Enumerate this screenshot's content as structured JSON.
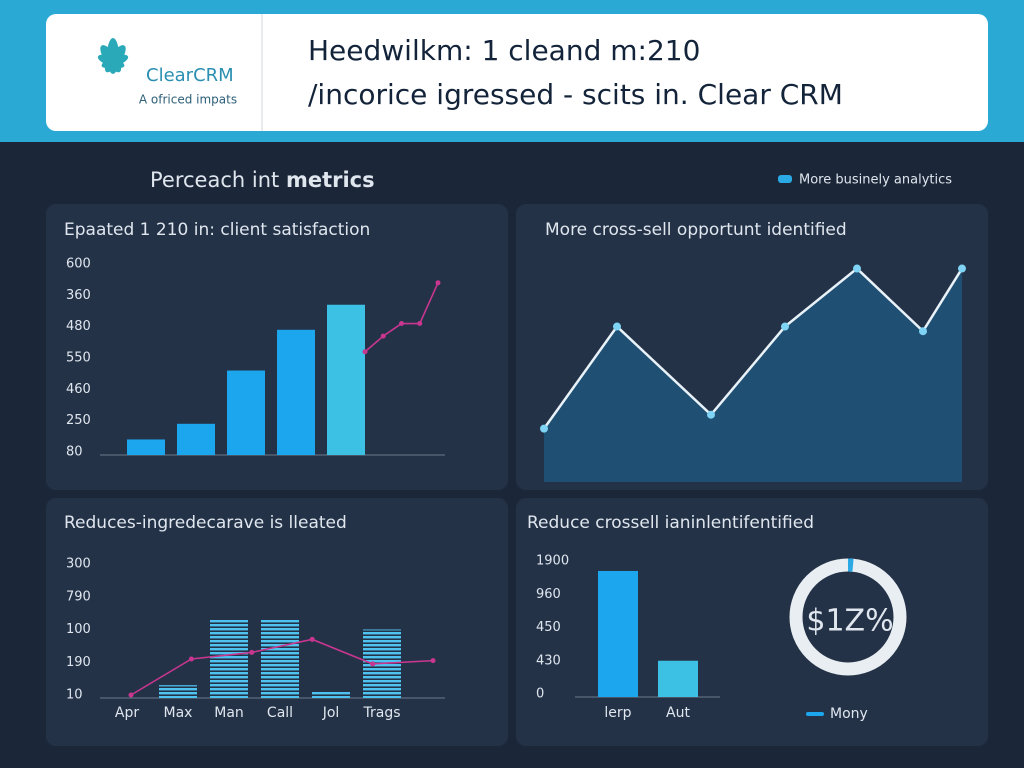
{
  "header": {
    "brand": "ClearCRM",
    "tagline": "A ofriced impats",
    "title_line1": "Heedwilkm: 1 cleand m:210",
    "title_line2": "/incorice igressed - scits in. Clear CRM"
  },
  "section": {
    "title_normal": "Perceach int",
    "title_bold": "metrics",
    "legend": "More businely analytics"
  },
  "chart_data": [
    {
      "type": "bar_line",
      "title": "Epaated 1 210 in: client satisfaction",
      "categories": [
        null,
        null,
        null,
        null,
        null
      ],
      "ylim": [
        0,
        6
      ],
      "yticks": [
        {
          "value": 0,
          "label": "80"
        },
        {
          "value": 1,
          "label": "250"
        },
        {
          "value": 2,
          "label": "460"
        },
        {
          "value": 3,
          "label": "550"
        },
        {
          "value": 4,
          "label": "480"
        },
        {
          "value": 5,
          "label": "360"
        },
        {
          "value": 6,
          "label": "600"
        }
      ],
      "series": [
        {
          "type": "bar",
          "colors": [
            "#1ba6ee",
            "#1ba6ee",
            "#1ba6ee",
            "#1ba6ee",
            "#3cc0e4"
          ],
          "values": [
            0.4,
            0.9,
            2.6,
            3.9,
            4.7
          ]
        },
        {
          "type": "line",
          "color": "#c8368f",
          "values": [
            3.2,
            3.7,
            4.1,
            4.1,
            5.4
          ]
        }
      ]
    },
    {
      "type": "area",
      "title": "More cross-sell opportunt identified",
      "ylim": [
        0,
        100
      ],
      "color": "#1f4f73",
      "line_color": "#e8f2f8",
      "marker_color": "#7fd4f5",
      "values": [
        23,
        67,
        29,
        67,
        92,
        65,
        92
      ]
    },
    {
      "type": "bar_line",
      "title": "Reduces-ingredecarave is lleated",
      "categories": [
        "Apr",
        "Max",
        "Man",
        "Call",
        "Jol",
        "Trags"
      ],
      "striped": true,
      "ylim": [
        0,
        4
      ],
      "yticks": [
        {
          "value": 0,
          "label": "10"
        },
        {
          "value": 1,
          "label": "190"
        },
        {
          "value": 2,
          "label": "100"
        },
        {
          "value": 3,
          "label": "790"
        },
        {
          "value": 4,
          "label": "300"
        }
      ],
      "series": [
        {
          "type": "bar",
          "colors": [
            "#4fc3f0",
            "#4fc3f0",
            "#4fc3f0",
            "#4fc3f0",
            "#4fc3f0",
            "#4fc3f0"
          ],
          "values": [
            null,
            0.3,
            2.3,
            2.3,
            0.1,
            2.0
          ]
        },
        {
          "type": "line",
          "color": "#c8368f",
          "values": [
            0,
            1.1,
            1.3,
            1.7,
            0.95,
            1.05
          ]
        }
      ]
    },
    {
      "type": "bar_donut",
      "title": "Reduce crossell ianinlentifentified",
      "categories": [
        "lerp",
        "Aut"
      ],
      "ylim": [
        0,
        4
      ],
      "yticks": [
        {
          "value": 0,
          "label": "0"
        },
        {
          "value": 1,
          "label": "430"
        },
        {
          "value": 2,
          "label": "450"
        },
        {
          "value": 3,
          "label": "960"
        },
        {
          "value": 4,
          "label": "1900"
        }
      ],
      "series": [
        {
          "type": "bar",
          "colors": [
            "#1ba6ee",
            "#3cc0e4"
          ],
          "values": [
            3.7,
            1.0
          ]
        }
      ],
      "donut_label": "$1Z%",
      "legend": "Mony",
      "legend_color": "#1ba6ee"
    }
  ]
}
